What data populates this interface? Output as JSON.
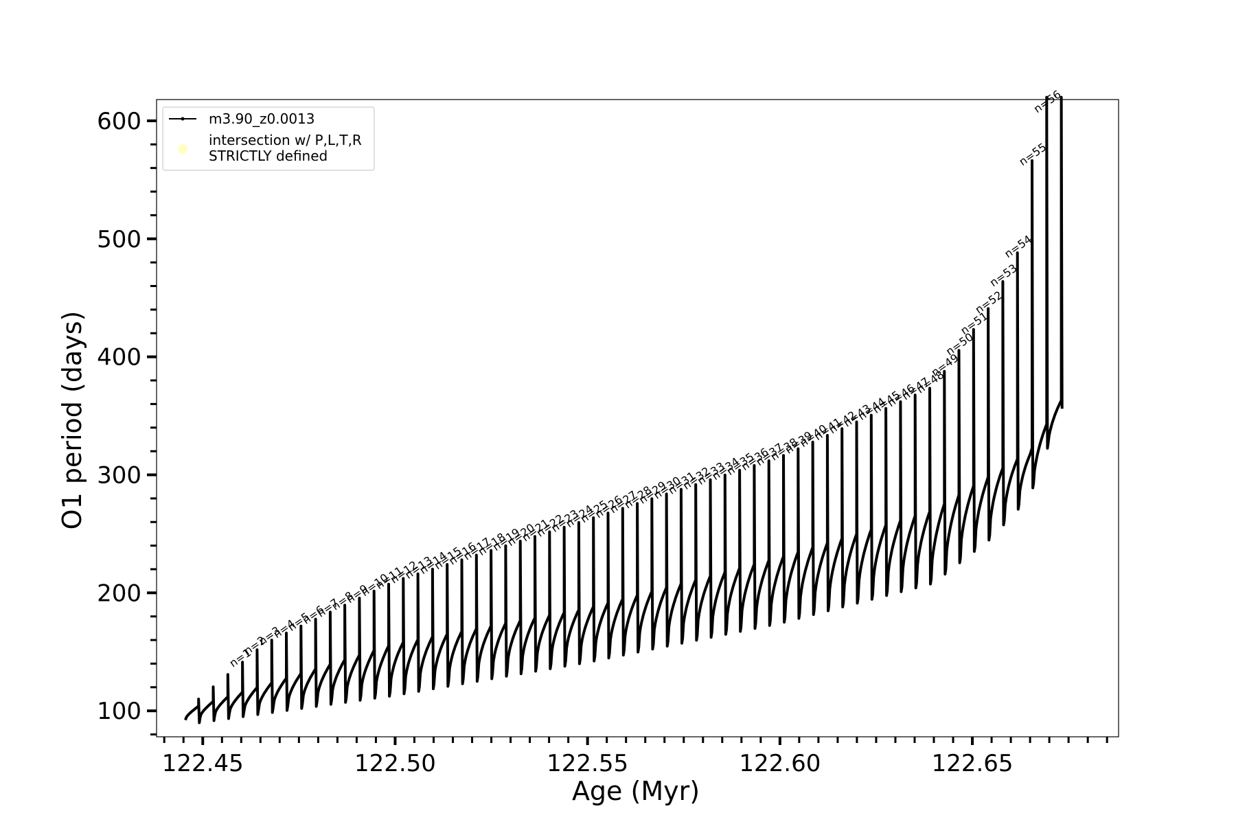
{
  "chart_data": {
    "type": "line",
    "title": "",
    "xlabel": "Age (Myr)",
    "ylabel": "O1 period (days)",
    "xlim": [
      122.438,
      122.688
    ],
    "ylim": [
      78,
      618
    ],
    "x_ticks": [
      122.45,
      122.5,
      122.55,
      122.6,
      122.65
    ],
    "x_tick_labels": [
      "122.45",
      "122.50",
      "122.55",
      "122.60",
      "122.65"
    ],
    "y_ticks": [
      100,
      200,
      300,
      400,
      500,
      600
    ],
    "y_tick_labels": [
      "100",
      "200",
      "300",
      "400",
      "500",
      "600"
    ],
    "grid": false,
    "legend": {
      "placement": "upper-left",
      "entries": [
        {
          "label": "m3.90_z0.0013",
          "marker": "line-dot",
          "color": "#000000"
        },
        {
          "label_line1": "intersection w/ P,L,T,R",
          "label_line2": "STRICTLY defined",
          "marker": "circle",
          "color": "#ffffc0"
        }
      ]
    },
    "series": [
      {
        "name": "m3.90_z0.0013",
        "color": "#000000",
        "pulse_count": 60,
        "start_age": 122.4455,
        "end_age": 122.6735,
        "description_points": {
          "base_period": [
            [
              122.445,
              92
            ],
            [
              122.5,
              117
            ],
            [
              122.55,
              145
            ],
            [
              122.6,
              178
            ],
            [
              122.64,
              212
            ],
            [
              122.655,
              250
            ],
            [
              122.665,
              285
            ],
            [
              122.6735,
              360
            ]
          ],
          "cycle_top": [
            [
              122.445,
              100
            ],
            [
              122.5,
              157
            ],
            [
              122.55,
              187
            ],
            [
              122.6,
              230
            ],
            [
              122.64,
              270
            ],
            [
              122.665,
              320
            ],
            [
              122.6735,
              365
            ]
          ],
          "spike_top": [
            [
              122.449,
              110
            ],
            [
              122.466,
              157
            ],
            [
              122.5,
              210
            ],
            [
              122.55,
              262
            ],
            [
              122.6,
              315
            ],
            [
              122.64,
              375
            ],
            [
              122.655,
              445
            ],
            [
              122.662,
              490
            ],
            [
              122.668,
              620
            ]
          ]
        }
      }
    ],
    "annotations": [
      "n=1",
      "n=2",
      "n=3",
      "n=4",
      "n=5",
      "n=6",
      "n=7",
      "n=8",
      "n=9",
      "n=10",
      "n=11",
      "n=12",
      "n=13",
      "n=14",
      "n=15",
      "n=16",
      "n=17",
      "n=18",
      "n=19",
      "n=20",
      "n=21",
      "n=22",
      "n=23",
      "n=24",
      "n=25",
      "n=26",
      "n=27",
      "n=28",
      "n=29",
      "n=30",
      "n=31",
      "n=32",
      "n=33",
      "n=34",
      "n=35",
      "n=36",
      "n=37",
      "n=38",
      "n=39",
      "n=40",
      "n=41",
      "n=42",
      "n=43",
      "n=44",
      "n=45",
      "n=46",
      "n=47",
      "n=48",
      "n=49",
      "n=50",
      "n=51",
      "n=52",
      "n=53",
      "n=54",
      "n=55",
      "n=56"
    ]
  }
}
